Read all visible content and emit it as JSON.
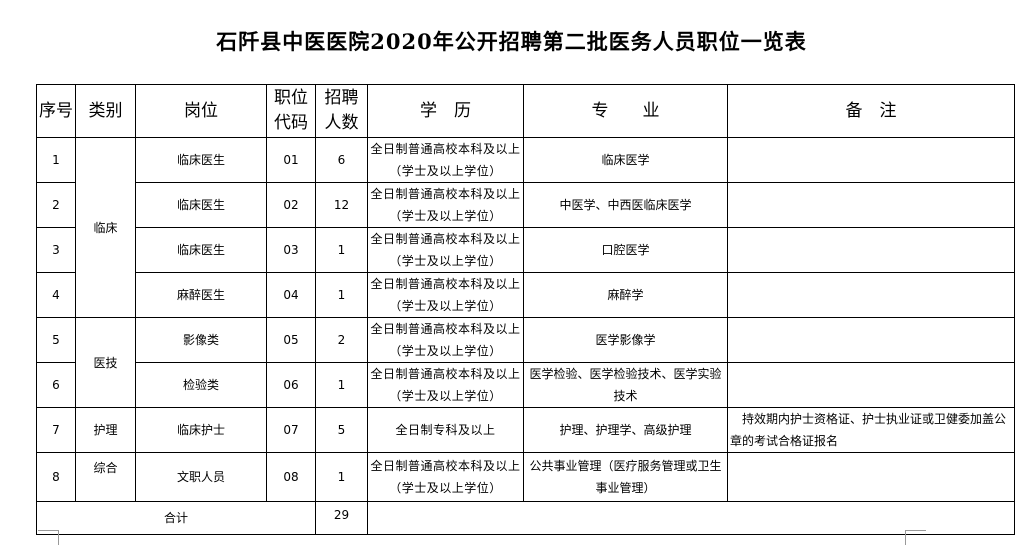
{
  "title": "石阡县中医医院2020年公开招聘第二批医务人员职位一览表",
  "headers": [
    "序号",
    "类别",
    "岗位",
    "职位代码",
    "招聘人数",
    "学　历",
    "专　　业",
    "备　注"
  ],
  "categories": [
    "临床",
    "医技",
    "护理",
    "综合"
  ],
  "rows": [
    {
      "no": "1",
      "post": "临床医生",
      "code": "01",
      "count": "6",
      "edu": "全日制普通高校本科及以上（学士及以上学位）",
      "major": "临床医学",
      "note": ""
    },
    {
      "no": "2",
      "post": "临床医生",
      "code": "02",
      "count": "12",
      "edu": "全日制普通高校本科及以上（学士及以上学位）",
      "major": "中医学、中西医临床医学",
      "note": ""
    },
    {
      "no": "3",
      "post": "临床医生",
      "code": "03",
      "count": "1",
      "edu": "全日制普通高校本科及以上（学士及以上学位）",
      "major": "口腔医学",
      "note": ""
    },
    {
      "no": "4",
      "post": "麻醉医生",
      "code": "04",
      "count": "1",
      "edu": "全日制普通高校本科及以上（学士及以上学位）",
      "major": "麻醉学",
      "note": ""
    },
    {
      "no": "5",
      "post": "影像类",
      "code": "05",
      "count": "2",
      "edu": "全日制普通高校本科及以上（学士及以上学位）",
      "major": "医学影像学",
      "note": ""
    },
    {
      "no": "6",
      "post": "检验类",
      "code": "06",
      "count": "1",
      "edu": "全日制普通高校本科及以上（学士及以上学位）",
      "major": "医学检验、医学检验技术、医学实验技术",
      "note": ""
    },
    {
      "no": "7",
      "post": "临床护士",
      "code": "07",
      "count": "5",
      "edu": "全日制专科及以上",
      "major": "护理、护理学、高级护理",
      "note": "　持效期内护士资格证、护士执业证或卫健委加盖公章的考试合格证报名"
    },
    {
      "no": "8",
      "post": "文职人员",
      "code": "08",
      "count": "1",
      "edu": "全日制普通高校本科及以上（学士及以上学位）",
      "major": "公共事业管理（医疗服务管理或卫生事业管理）",
      "note": ""
    }
  ],
  "total": {
    "label": "合计",
    "count": "29"
  }
}
